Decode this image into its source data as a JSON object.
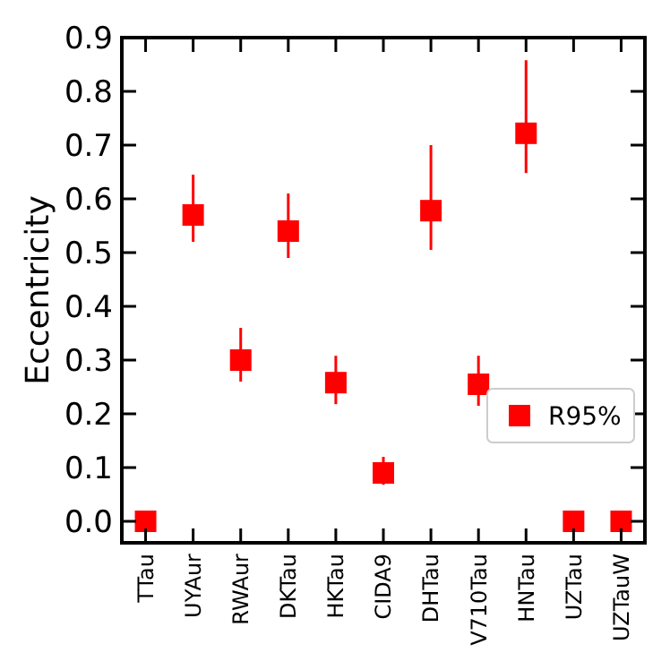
{
  "chart_data": {
    "type": "scatter",
    "ylabel": "Eccentricity",
    "categories": [
      "TTau",
      "UYAur",
      "RWAur",
      "DKTau",
      "HKTau",
      "CIDA9",
      "DHTau",
      "V710Tau",
      "HNTau",
      "UZTau",
      "UZTauW"
    ],
    "series": [
      {
        "name": "R95%",
        "color": "#ff0000",
        "values": [
          0.0,
          0.57,
          0.3,
          0.54,
          0.258,
          0.09,
          0.578,
          0.255,
          0.722,
          0.0,
          0.0
        ],
        "errors": [
          null,
          [
            0.52,
            0.645
          ],
          [
            0.26,
            0.36
          ],
          [
            0.49,
            0.61
          ],
          [
            0.218,
            0.308
          ],
          [
            0.068,
            0.12
          ],
          [
            0.505,
            0.7
          ],
          [
            0.215,
            0.308
          ],
          [
            0.648,
            0.858
          ],
          null,
          null
        ]
      }
    ],
    "ylim": [
      -0.04,
      0.9
    ],
    "yticks": [
      {
        "value": 0,
        "label": "0.0"
      },
      0.1,
      0.2,
      0.3,
      0.4,
      0.5,
      0.6,
      0.7,
      0.8,
      0.9
    ],
    "marker": "square",
    "legend": "bottom right",
    "grid": false
  }
}
